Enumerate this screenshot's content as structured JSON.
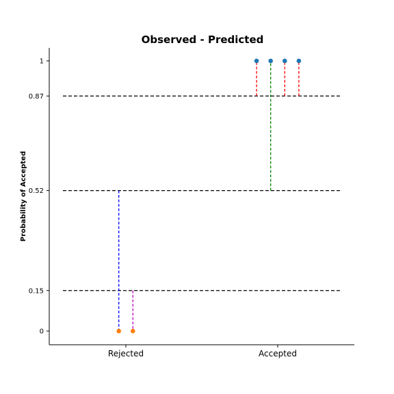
{
  "chart_data": {
    "type": "scatter",
    "title": "Observed - Predicted",
    "xlabel": "",
    "ylabel": "Probability of Accepted",
    "categories": [
      "Rejected",
      "Accepted"
    ],
    "yticks": [
      0,
      0.15,
      0.52,
      0.87,
      1
    ],
    "ytick_labels": [
      "0",
      "0.15",
      "0.52",
      "0.87",
      "1"
    ],
    "ylim": [
      -0.05,
      1.05
    ],
    "grid": false,
    "reference_lines": [
      0.15,
      0.52,
      0.87
    ],
    "points": [
      {
        "category": "Rejected",
        "offset": -0.05,
        "observed": 0,
        "predicted": 0.52,
        "point_color": "#ff7f0e",
        "line_color": "#0000ff"
      },
      {
        "category": "Rejected",
        "offset": 0.05,
        "observed": 0,
        "predicted": 0.15,
        "point_color": "#ff7f0e",
        "line_color": "#bf00bf"
      },
      {
        "category": "Accepted",
        "offset": -0.15,
        "observed": 1,
        "predicted": 0.87,
        "point_color": "#1f77b4",
        "line_color": "#ff0000"
      },
      {
        "category": "Accepted",
        "offset": -0.05,
        "observed": 1,
        "predicted": 0.52,
        "point_color": "#1f77b4",
        "line_color": "#008000"
      },
      {
        "category": "Accepted",
        "offset": 0.05,
        "observed": 1,
        "predicted": 0.87,
        "point_color": "#1f77b4",
        "line_color": "#ff0000"
      },
      {
        "category": "Accepted",
        "offset": 0.15,
        "observed": 1,
        "predicted": 0.87,
        "point_color": "#1f77b4",
        "line_color": "#ff0000"
      }
    ],
    "colors": {
      "reference_line": "#000000",
      "axis": "#000000"
    }
  }
}
